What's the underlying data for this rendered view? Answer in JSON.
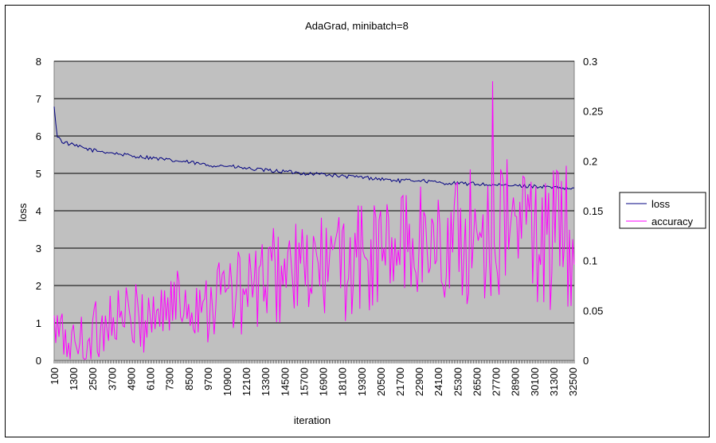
{
  "chart_data": {
    "type": "line",
    "title": "AdaGrad, minibatch=8",
    "xlabel": "iteration",
    "ylabel": "loss",
    "y2label": "",
    "ylim": [
      0,
      8
    ],
    "y_ticks": [
      0,
      1,
      2,
      3,
      4,
      5,
      6,
      7,
      8
    ],
    "y2lim": [
      0,
      0.3
    ],
    "y2_ticks": [
      "0",
      "0.05",
      "0.1",
      "0.15",
      "0.2",
      "0.25",
      "0.3"
    ],
    "x_tick_labels": [
      "100",
      "1300",
      "2500",
      "3700",
      "4900",
      "6100",
      "7300",
      "8500",
      "9700",
      "10900",
      "12100",
      "13300",
      "14500",
      "15700",
      "16900",
      "18100",
      "19300",
      "20500",
      "21700",
      "22900",
      "24100",
      "25300",
      "26500",
      "27700",
      "28900",
      "30100",
      "31300",
      "32500"
    ],
    "x_first": 100,
    "x_last": 32600,
    "x_step": 100,
    "grid": "horizontal major gridlines",
    "plot_background": "#c0c0c0",
    "legend_position": "right",
    "series": [
      {
        "name": "loss",
        "axis": "left",
        "color": "#000080",
        "keypoints": [
          [
            100,
            6.75
          ],
          [
            300,
            6.0
          ],
          [
            600,
            5.85
          ],
          [
            1300,
            5.75
          ],
          [
            2500,
            5.62
          ],
          [
            3700,
            5.55
          ],
          [
            4900,
            5.47
          ],
          [
            6100,
            5.42
          ],
          [
            7300,
            5.35
          ],
          [
            8500,
            5.3
          ],
          [
            9700,
            5.22
          ],
          [
            10900,
            5.2
          ],
          [
            12100,
            5.13
          ],
          [
            13300,
            5.08
          ],
          [
            14500,
            5.05
          ],
          [
            15700,
            5.0
          ],
          [
            16900,
            4.98
          ],
          [
            18100,
            4.92
          ],
          [
            19300,
            4.9
          ],
          [
            20500,
            4.85
          ],
          [
            21700,
            4.8
          ],
          [
            22900,
            4.82
          ],
          [
            24100,
            4.75
          ],
          [
            25300,
            4.73
          ],
          [
            26500,
            4.72
          ],
          [
            27700,
            4.68
          ],
          [
            28900,
            4.67
          ],
          [
            30100,
            4.66
          ],
          [
            31300,
            4.62
          ],
          [
            32500,
            4.58
          ]
        ],
        "noise_amplitude": 0.05
      },
      {
        "name": "accuracy",
        "axis": "right",
        "color": "#ff00ff",
        "keypoints": [
          [
            100,
            0.03
          ],
          [
            1300,
            0.015
          ],
          [
            2500,
            0.025
          ],
          [
            3700,
            0.045
          ],
          [
            4900,
            0.04
          ],
          [
            6100,
            0.045
          ],
          [
            7300,
            0.055
          ],
          [
            8500,
            0.06
          ],
          [
            9700,
            0.06
          ],
          [
            10900,
            0.07
          ],
          [
            12100,
            0.065
          ],
          [
            13300,
            0.08
          ],
          [
            14500,
            0.09
          ],
          [
            15700,
            0.085
          ],
          [
            16900,
            0.095
          ],
          [
            18100,
            0.095
          ],
          [
            19300,
            0.1
          ],
          [
            20500,
            0.105
          ],
          [
            21700,
            0.115
          ],
          [
            22900,
            0.12
          ],
          [
            24100,
            0.115
          ],
          [
            25300,
            0.12
          ],
          [
            26500,
            0.125
          ],
          [
            27700,
            0.13
          ],
          [
            28900,
            0.135
          ],
          [
            30100,
            0.13
          ],
          [
            31300,
            0.12
          ],
          [
            32500,
            0.125
          ]
        ],
        "noise_amplitude": 0.045,
        "peak": [
          27500,
          0.28
        ]
      }
    ]
  }
}
